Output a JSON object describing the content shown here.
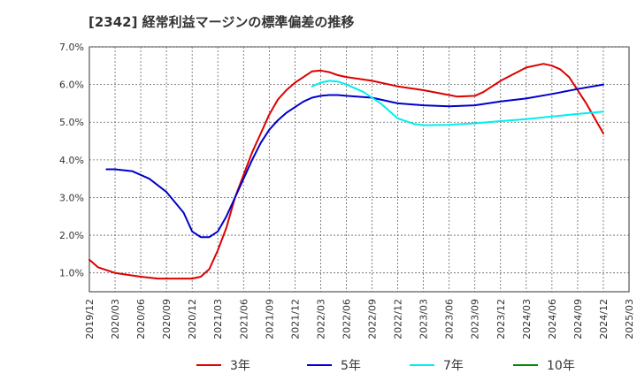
{
  "chart_data": {
    "type": "line",
    "title": "[2342]  経常利益マージンの標準偏差の推移",
    "xlabel": "",
    "ylabel": "",
    "ylim": [
      0.5,
      7.0
    ],
    "y_ticks": [
      "1.0%",
      "2.0%",
      "3.0%",
      "4.0%",
      "5.0%",
      "6.0%",
      "7.0%"
    ],
    "y_tick_values": [
      1,
      2,
      3,
      4,
      5,
      6,
      7
    ],
    "x_ticks": [
      "2019/12",
      "2020/03",
      "2020/06",
      "2020/09",
      "2020/12",
      "2021/03",
      "2021/06",
      "2021/09",
      "2021/12",
      "2022/03",
      "2022/06",
      "2022/09",
      "2022/12",
      "2023/03",
      "2023/06",
      "2023/09",
      "2023/12",
      "2024/03",
      "2024/06",
      "2024/09",
      "2024/12",
      "2025/03"
    ],
    "grid": true,
    "legend_position": "bottom",
    "series": [
      {
        "name": "3年",
        "color": "#dd0000",
        "x": [
          "2019/12",
          "2020/01",
          "2020/03",
          "2020/06",
          "2020/08",
          "2020/10",
          "2020/12",
          "2021/01",
          "2021/02",
          "2021/03",
          "2021/04",
          "2021/05",
          "2021/06",
          "2021/07",
          "2021/08",
          "2021/09",
          "2021/10",
          "2021/11",
          "2021/12",
          "2022/01",
          "2022/02",
          "2022/03",
          "2022/04",
          "2022/05",
          "2022/06",
          "2022/09",
          "2022/12",
          "2023/03",
          "2023/06",
          "2023/07",
          "2023/09",
          "2023/10",
          "2023/12",
          "2024/03",
          "2024/05",
          "2024/06",
          "2024/07",
          "2024/08",
          "2024/10",
          "2024/12"
        ],
        "values": [
          1.35,
          1.15,
          1.0,
          0.9,
          0.85,
          0.85,
          0.85,
          0.9,
          1.1,
          1.6,
          2.2,
          3.0,
          3.6,
          4.2,
          4.7,
          5.2,
          5.6,
          5.85,
          6.05,
          6.2,
          6.35,
          6.37,
          6.33,
          6.25,
          6.2,
          6.1,
          5.95,
          5.85,
          5.72,
          5.68,
          5.7,
          5.8,
          6.1,
          6.45,
          6.55,
          6.5,
          6.4,
          6.2,
          5.5,
          4.7
        ]
      },
      {
        "name": "5年",
        "color": "#0000cc",
        "x": [
          "2020/02",
          "2020/03",
          "2020/05",
          "2020/07",
          "2020/09",
          "2020/11",
          "2020/12",
          "2021/01",
          "2021/02",
          "2021/03",
          "2021/04",
          "2021/05",
          "2021/06",
          "2021/07",
          "2021/08",
          "2021/09",
          "2021/10",
          "2021/11",
          "2021/12",
          "2022/01",
          "2022/02",
          "2022/03",
          "2022/04",
          "2022/05",
          "2022/06",
          "2022/09",
          "2022/12",
          "2023/03",
          "2023/06",
          "2023/09",
          "2023/12",
          "2024/03",
          "2024/06",
          "2024/09",
          "2024/12"
        ],
        "values": [
          3.75,
          3.75,
          3.7,
          3.5,
          3.15,
          2.6,
          2.1,
          1.95,
          1.95,
          2.1,
          2.5,
          3.0,
          3.5,
          4.0,
          4.45,
          4.8,
          5.05,
          5.25,
          5.4,
          5.55,
          5.65,
          5.7,
          5.72,
          5.72,
          5.7,
          5.65,
          5.5,
          5.45,
          5.42,
          5.45,
          5.55,
          5.63,
          5.75,
          5.88,
          6.0
        ]
      },
      {
        "name": "7年",
        "color": "#00eeee",
        "x": [
          "2022/02",
          "2022/03",
          "2022/04",
          "2022/05",
          "2022/06",
          "2022/08",
          "2022/10",
          "2022/12",
          "2023/02",
          "2023/03",
          "2023/06",
          "2023/09",
          "2023/12",
          "2024/03",
          "2024/06",
          "2024/09",
          "2024/12"
        ],
        "values": [
          5.95,
          6.05,
          6.1,
          6.08,
          6.0,
          5.8,
          5.5,
          5.1,
          4.95,
          4.92,
          4.93,
          4.97,
          5.03,
          5.08,
          5.15,
          5.22,
          5.28
        ]
      },
      {
        "name": "10年",
        "color": "#008800",
        "x": [],
        "values": []
      }
    ]
  }
}
